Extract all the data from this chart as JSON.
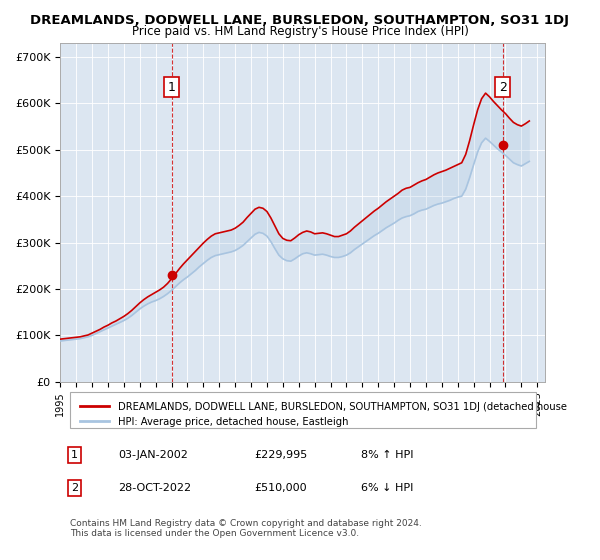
{
  "title": "DREAMLANDS, DODWELL LANE, BURSLEDON, SOUTHAMPTON, SO31 1DJ",
  "subtitle": "Price paid vs. HM Land Registry's House Price Index (HPI)",
  "bg_color": "#dce6f1",
  "plot_bg_color": "#dce6f1",
  "hpi_color": "#a8c4e0",
  "price_color": "#cc0000",
  "marker_color": "#cc0000",
  "dashed_color": "#cc0000",
  "ylim": [
    0,
    730000
  ],
  "yticks": [
    0,
    100000,
    200000,
    300000,
    400000,
    500000,
    600000,
    700000
  ],
  "ytick_labels": [
    "£0",
    "£100K",
    "£200K",
    "£300K",
    "£400K",
    "£500K",
    "£600K",
    "£700K"
  ],
  "xlim_start": 1995.0,
  "xlim_end": 2025.5,
  "xticks": [
    1995,
    1996,
    1997,
    1998,
    1999,
    2000,
    2001,
    2002,
    2003,
    2004,
    2005,
    2006,
    2007,
    2008,
    2009,
    2010,
    2011,
    2012,
    2013,
    2014,
    2015,
    2016,
    2017,
    2018,
    2019,
    2020,
    2021,
    2022,
    2023,
    2024,
    2025
  ],
  "sale1_x": 2002.01,
  "sale1_y": 229995,
  "sale2_x": 2022.83,
  "sale2_y": 510000,
  "legend_line1": "DREAMLANDS, DODWELL LANE, BURSLEDON, SOUTHAMPTON, SO31 1DJ (detached house",
  "legend_line2": "HPI: Average price, detached house, Eastleigh",
  "table_data": [
    [
      "1",
      "03-JAN-2002",
      "£229,995",
      "8% ↑ HPI"
    ],
    [
      "2",
      "28-OCT-2022",
      "£510,000",
      "6% ↓ HPI"
    ]
  ],
  "footnote": "Contains HM Land Registry data © Crown copyright and database right 2024.\nThis data is licensed under the Open Government Licence v3.0.",
  "hpi_data_x": [
    1995.0,
    1995.25,
    1995.5,
    1995.75,
    1996.0,
    1996.25,
    1996.5,
    1996.75,
    1997.0,
    1997.25,
    1997.5,
    1997.75,
    1998.0,
    1998.25,
    1998.5,
    1998.75,
    1999.0,
    1999.25,
    1999.5,
    1999.75,
    2000.0,
    2000.25,
    2000.5,
    2000.75,
    2001.0,
    2001.25,
    2001.5,
    2001.75,
    2002.0,
    2002.25,
    2002.5,
    2002.75,
    2003.0,
    2003.25,
    2003.5,
    2003.75,
    2004.0,
    2004.25,
    2004.5,
    2004.75,
    2005.0,
    2005.25,
    2005.5,
    2005.75,
    2006.0,
    2006.25,
    2006.5,
    2006.75,
    2007.0,
    2007.25,
    2007.5,
    2007.75,
    2008.0,
    2008.25,
    2008.5,
    2008.75,
    2009.0,
    2009.25,
    2009.5,
    2009.75,
    2010.0,
    2010.25,
    2010.5,
    2010.75,
    2011.0,
    2011.25,
    2011.5,
    2011.75,
    2012.0,
    2012.25,
    2012.5,
    2012.75,
    2013.0,
    2013.25,
    2013.5,
    2013.75,
    2014.0,
    2014.25,
    2014.5,
    2014.75,
    2015.0,
    2015.25,
    2015.5,
    2015.75,
    2016.0,
    2016.25,
    2016.5,
    2016.75,
    2017.0,
    2017.25,
    2017.5,
    2017.75,
    2018.0,
    2018.25,
    2018.5,
    2018.75,
    2019.0,
    2019.25,
    2019.5,
    2019.75,
    2020.0,
    2020.25,
    2020.5,
    2020.75,
    2021.0,
    2021.25,
    2021.5,
    2021.75,
    2022.0,
    2022.25,
    2022.5,
    2022.75,
    2023.0,
    2023.25,
    2023.5,
    2023.75,
    2024.0,
    2024.25,
    2024.5
  ],
  "hpi_data_y": [
    88000,
    89000,
    90000,
    91000,
    92000,
    93000,
    95000,
    97000,
    100000,
    104000,
    108000,
    112000,
    116000,
    120000,
    124000,
    128000,
    132000,
    137000,
    143000,
    150000,
    157000,
    163000,
    168000,
    172000,
    175000,
    179000,
    184000,
    190000,
    197000,
    205000,
    213000,
    220000,
    226000,
    233000,
    240000,
    248000,
    255000,
    262000,
    268000,
    272000,
    274000,
    276000,
    278000,
    280000,
    283000,
    288000,
    294000,
    302000,
    310000,
    318000,
    322000,
    320000,
    314000,
    302000,
    287000,
    273000,
    265000,
    261000,
    260000,
    265000,
    271000,
    276000,
    278000,
    276000,
    273000,
    274000,
    275000,
    273000,
    270000,
    268000,
    268000,
    270000,
    273000,
    278000,
    285000,
    291000,
    297000,
    303000,
    309000,
    315000,
    320000,
    326000,
    332000,
    337000,
    342000,
    348000,
    353000,
    356000,
    358000,
    362000,
    367000,
    370000,
    372000,
    376000,
    380000,
    383000,
    385000,
    388000,
    391000,
    395000,
    398000,
    400000,
    415000,
    440000,
    468000,
    495000,
    515000,
    525000,
    518000,
    510000,
    502000,
    495000,
    488000,
    480000,
    472000,
    468000,
    465000,
    470000,
    475000
  ],
  "price_data_x": [
    1995.0,
    1995.25,
    1995.5,
    1995.75,
    1996.0,
    1996.25,
    1996.5,
    1996.75,
    1997.0,
    1997.25,
    1997.5,
    1997.75,
    1998.0,
    1998.25,
    1998.5,
    1998.75,
    1999.0,
    1999.25,
    1999.5,
    1999.75,
    2000.0,
    2000.25,
    2000.5,
    2000.75,
    2001.0,
    2001.25,
    2001.5,
    2001.75,
    2002.0,
    2002.25,
    2002.5,
    2002.75,
    2003.0,
    2003.25,
    2003.5,
    2003.75,
    2004.0,
    2004.25,
    2004.5,
    2004.75,
    2005.0,
    2005.25,
    2005.5,
    2005.75,
    2006.0,
    2006.25,
    2006.5,
    2006.75,
    2007.0,
    2007.25,
    2007.5,
    2007.75,
    2008.0,
    2008.25,
    2008.5,
    2008.75,
    2009.0,
    2009.25,
    2009.5,
    2009.75,
    2010.0,
    2010.25,
    2010.5,
    2010.75,
    2011.0,
    2011.25,
    2011.5,
    2011.75,
    2012.0,
    2012.25,
    2012.5,
    2012.75,
    2013.0,
    2013.25,
    2013.5,
    2013.75,
    2014.0,
    2014.25,
    2014.5,
    2014.75,
    2015.0,
    2015.25,
    2015.5,
    2015.75,
    2016.0,
    2016.25,
    2016.5,
    2016.75,
    2017.0,
    2017.25,
    2017.5,
    2017.75,
    2018.0,
    2018.25,
    2018.5,
    2018.75,
    2019.0,
    2019.25,
    2019.5,
    2019.75,
    2020.0,
    2020.25,
    2020.5,
    2020.75,
    2021.0,
    2021.25,
    2021.5,
    2021.75,
    2022.0,
    2022.25,
    2022.5,
    2022.75,
    2023.0,
    2023.25,
    2023.5,
    2023.75,
    2024.0,
    2024.25,
    2024.5
  ],
  "price_data_y": [
    92000,
    93000,
    94000,
    95000,
    96000,
    97000,
    99000,
    101000,
    105000,
    109000,
    113000,
    118000,
    122000,
    127000,
    131000,
    136000,
    141000,
    147000,
    154000,
    162000,
    170000,
    177000,
    183000,
    188000,
    193000,
    198000,
    204000,
    212000,
    222000,
    233000,
    244000,
    254000,
    263000,
    272000,
    281000,
    290000,
    299000,
    307000,
    314000,
    319000,
    321000,
    323000,
    325000,
    327000,
    331000,
    337000,
    344000,
    354000,
    363000,
    372000,
    376000,
    374000,
    367000,
    353000,
    336000,
    319000,
    309000,
    305000,
    304000,
    310000,
    317000,
    322000,
    325000,
    323000,
    319000,
    320000,
    321000,
    319000,
    316000,
    313000,
    313000,
    316000,
    319000,
    325000,
    333000,
    340000,
    347000,
    354000,
    361000,
    368000,
    374000,
    381000,
    388000,
    394000,
    400000,
    406000,
    413000,
    417000,
    419000,
    424000,
    429000,
    433000,
    436000,
    441000,
    446000,
    450000,
    453000,
    456000,
    460000,
    464000,
    468000,
    472000,
    490000,
    520000,
    554000,
    586000,
    610000,
    622000,
    614000,
    604000,
    595000,
    586000,
    578000,
    568000,
    559000,
    554000,
    551000,
    556000,
    562000
  ]
}
